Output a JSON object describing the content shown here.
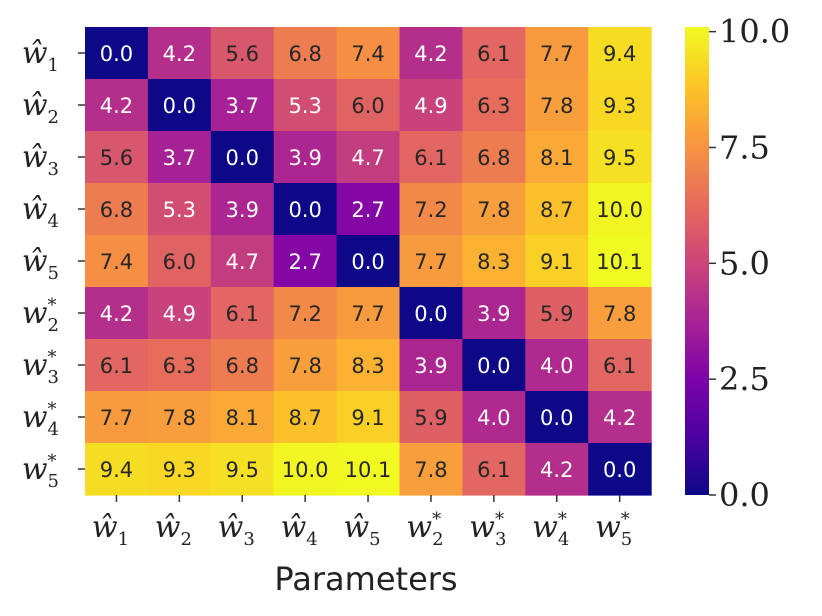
{
  "chart_data": {
    "type": "heatmap",
    "xlabel": "Parameters",
    "ylabel": "",
    "row_labels": [
      {
        "base": "ŵ",
        "sub": "1",
        "sup": ""
      },
      {
        "base": "ŵ",
        "sub": "2",
        "sup": ""
      },
      {
        "base": "ŵ",
        "sub": "3",
        "sup": ""
      },
      {
        "base": "ŵ",
        "sub": "4",
        "sup": ""
      },
      {
        "base": "ŵ",
        "sub": "5",
        "sup": ""
      },
      {
        "base": "w",
        "sub": "2",
        "sup": "*"
      },
      {
        "base": "w",
        "sub": "3",
        "sup": "*"
      },
      {
        "base": "w",
        "sub": "4",
        "sup": "*"
      },
      {
        "base": "w",
        "sub": "5",
        "sup": "*"
      }
    ],
    "col_labels": [
      {
        "base": "ŵ",
        "sub": "1",
        "sup": ""
      },
      {
        "base": "ŵ",
        "sub": "2",
        "sup": ""
      },
      {
        "base": "ŵ",
        "sub": "3",
        "sup": ""
      },
      {
        "base": "ŵ",
        "sub": "4",
        "sup": ""
      },
      {
        "base": "ŵ",
        "sub": "5",
        "sup": ""
      },
      {
        "base": "w",
        "sub": "2",
        "sup": "*"
      },
      {
        "base": "w",
        "sub": "3",
        "sup": "*"
      },
      {
        "base": "w",
        "sub": "4",
        "sup": "*"
      },
      {
        "base": "w",
        "sub": "5",
        "sup": "*"
      }
    ],
    "values": [
      [
        0.0,
        4.2,
        5.6,
        6.8,
        7.4,
        4.2,
        6.1,
        7.7,
        9.4
      ],
      [
        4.2,
        0.0,
        3.7,
        5.3,
        6.0,
        4.9,
        6.3,
        7.8,
        9.3
      ],
      [
        5.6,
        3.7,
        0.0,
        3.9,
        4.7,
        6.1,
        6.8,
        8.1,
        9.5
      ],
      [
        6.8,
        5.3,
        3.9,
        0.0,
        2.7,
        7.2,
        7.8,
        8.7,
        10.0
      ],
      [
        7.4,
        6.0,
        4.7,
        2.7,
        0.0,
        7.7,
        8.3,
        9.1,
        10.1
      ],
      [
        4.2,
        4.9,
        6.1,
        7.2,
        7.7,
        0.0,
        3.9,
        5.9,
        7.8
      ],
      [
        6.1,
        6.3,
        6.8,
        7.8,
        8.3,
        3.9,
        0.0,
        4.0,
        6.1
      ],
      [
        7.7,
        7.8,
        8.1,
        8.7,
        9.1,
        5.9,
        4.0,
        0.0,
        4.2
      ],
      [
        9.4,
        9.3,
        9.5,
        10.0,
        10.1,
        7.8,
        6.1,
        4.2,
        0.0
      ]
    ],
    "value_format_decimals": 1,
    "colormap": "plasma",
    "vmin": 0.0,
    "vmax": 10.1,
    "colorbar_ticks": [
      "0.0",
      "2.5",
      "5.0",
      "7.5",
      "10.0"
    ],
    "colorbar_tick_values": [
      0.0,
      2.5,
      5.0,
      7.5,
      10.0
    ]
  }
}
